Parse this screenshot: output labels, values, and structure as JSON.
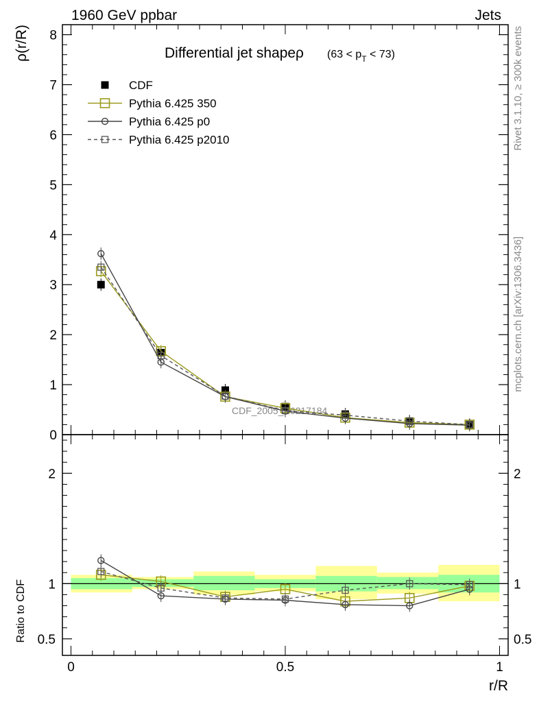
{
  "header": {
    "left": "1960 GeV ppbar",
    "right": "Jets"
  },
  "side": {
    "rivet": "Rivet 3.1.10, ≥ 300k events",
    "mcplots": "mcplots.cern.ch [arXiv:1306.3436]"
  },
  "chart_data": [
    {
      "type": "scatter",
      "title_main": "Differential jet shapeρ",
      "title_sub": "(63 < p",
      "title_sub_index": "T",
      "title_sub_end": " < 73)",
      "ylabel": "ρ(r/R)",
      "xlim": [
        -0.02,
        1.02
      ],
      "ylim": [
        0,
        8.2
      ],
      "yticks": [
        "0",
        "1",
        "2",
        "3",
        "4",
        "5",
        "6",
        "7",
        "8"
      ],
      "watermark": "CDF_2005_S6217184",
      "legend_position": "top-left",
      "x": [
        0.07,
        0.21,
        0.36,
        0.5,
        0.64,
        0.79,
        0.93
      ],
      "series": [
        {
          "name": "CDF",
          "color": "#000000",
          "marker": "filled-square",
          "values": [
            3.0,
            1.64,
            0.89,
            0.56,
            0.41,
            0.27,
            0.2
          ]
        },
        {
          "name": "Pythia 6.425 350",
          "color": "#9a9a1f",
          "marker": "open-square",
          "values": [
            3.27,
            1.67,
            0.76,
            0.53,
            0.34,
            0.24,
            0.2
          ]
        },
        {
          "name": "Pythia 6.425 p0",
          "color": "#444444",
          "marker": "open-circle",
          "values": [
            3.62,
            1.45,
            0.76,
            0.47,
            0.33,
            0.22,
            0.19
          ]
        },
        {
          "name": "Pythia 6.425 p2010",
          "color": "#555555",
          "marker": "open-square-small",
          "dashed": true,
          "values": [
            3.35,
            1.58,
            0.77,
            0.48,
            0.39,
            0.27,
            0.2
          ]
        }
      ]
    },
    {
      "type": "scatter",
      "ylabel": "Ratio to CDF",
      "xlabel": "r/R",
      "xlim": [
        -0.02,
        1.02
      ],
      "ylim": [
        0.35,
        2.35
      ],
      "yticks": [
        "0.5",
        "1",
        "2"
      ],
      "xticks": [
        "0",
        "0.5",
        "1"
      ],
      "reference": 1.0,
      "band_edges": [
        0.0,
        0.143,
        0.286,
        0.429,
        0.571,
        0.714,
        0.857,
        1.0
      ],
      "band_inner": [
        [
          0.95,
          1.05
        ],
        [
          0.97,
          1.04
        ],
        [
          0.94,
          1.07
        ],
        [
          0.96,
          1.04
        ],
        [
          0.93,
          1.07
        ],
        [
          0.95,
          1.06
        ],
        [
          0.92,
          1.08
        ]
      ],
      "band_outer": [
        [
          0.92,
          1.08
        ],
        [
          0.95,
          1.06
        ],
        [
          0.9,
          1.11
        ],
        [
          0.93,
          1.08
        ],
        [
          0.86,
          1.16
        ],
        [
          0.91,
          1.1
        ],
        [
          0.84,
          1.17
        ]
      ],
      "x": [
        0.07,
        0.21,
        0.36,
        0.5,
        0.64,
        0.79,
        0.93
      ],
      "series": [
        {
          "name": "Pythia 6.425 350",
          "color": "#9a9a1f",
          "marker": "open-square",
          "values": [
            1.08,
            1.02,
            0.88,
            0.95,
            0.84,
            0.87,
            0.98
          ]
        },
        {
          "name": "Pythia 6.425 p0",
          "color": "#444444",
          "marker": "open-circle",
          "values": [
            1.21,
            0.89,
            0.86,
            0.85,
            0.81,
            0.8,
            0.95
          ]
        },
        {
          "name": "Pythia 6.425 p2010",
          "color": "#555555",
          "marker": "open-square-small",
          "dashed": true,
          "values": [
            1.11,
            0.96,
            0.87,
            0.86,
            0.94,
            1.0,
            0.99
          ]
        }
      ]
    }
  ]
}
